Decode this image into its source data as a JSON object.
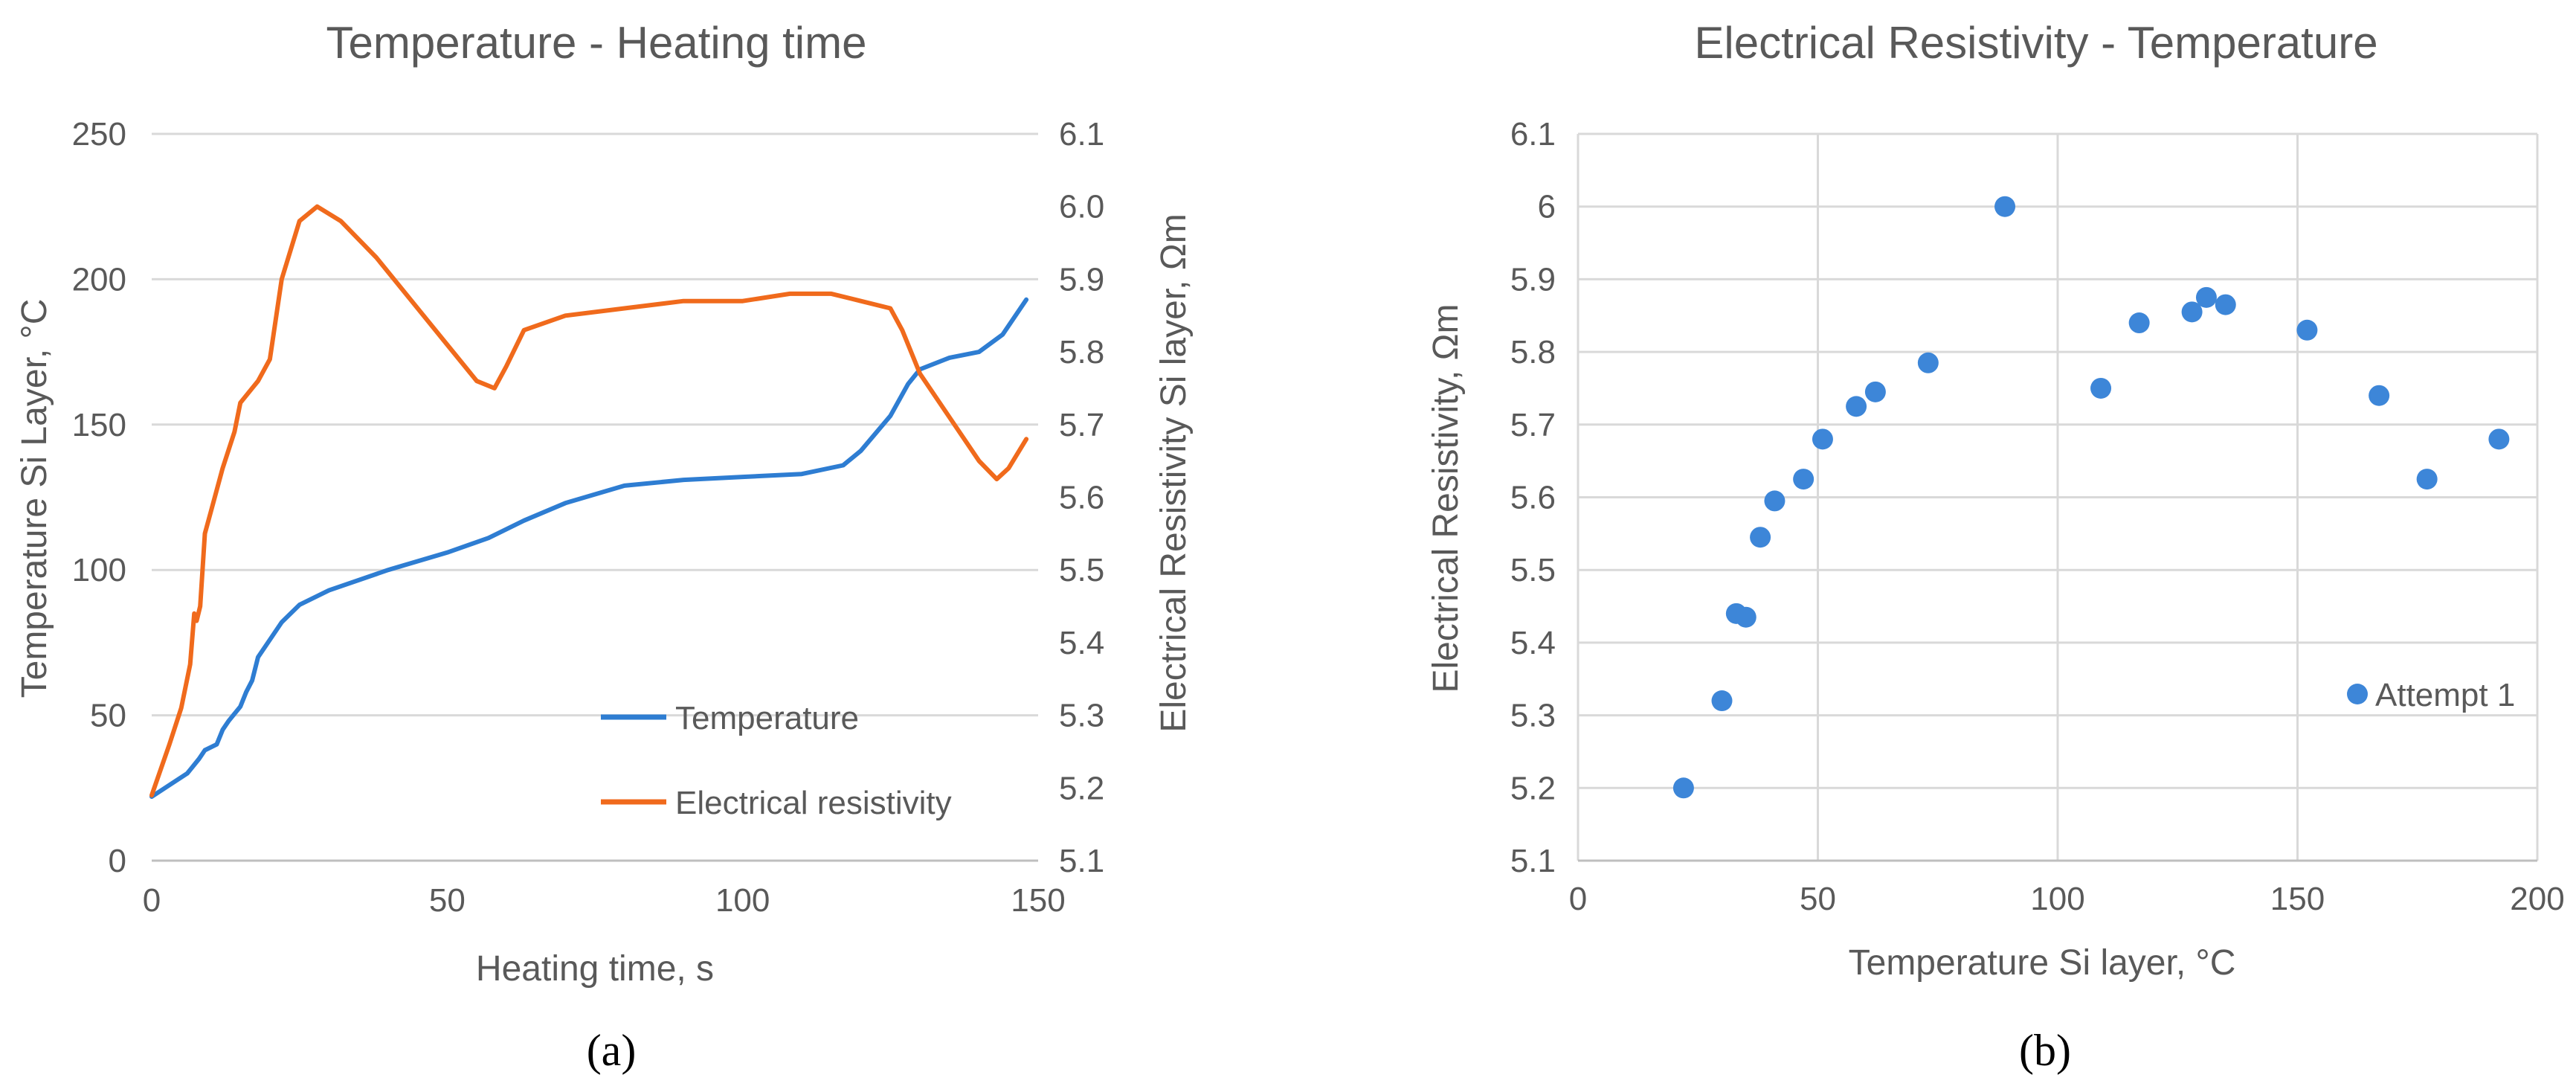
{
  "colors": {
    "temperature": "#2e7dd2",
    "resistivity": "#f06a1c",
    "points": "#3d86d8"
  },
  "panels": {
    "a": "(a)",
    "b": "(b)"
  },
  "chart_data": [
    {
      "type": "line",
      "title": "Temperature - Heating time",
      "xlabel": "Heating time, s",
      "ylabel": "Temperature Si Layer, °C",
      "y2label": "Electrical Resistivity Si layer, Ωm",
      "xlim": [
        0,
        150
      ],
      "ylim": [
        0,
        250
      ],
      "y2lim": [
        5.1,
        6.1
      ],
      "x_ticks": [
        "0",
        "50",
        "100",
        "150"
      ],
      "y_ticks": [
        "0",
        "50",
        "100",
        "150",
        "200",
        "250"
      ],
      "y2_ticks": [
        "5.1",
        "5.2",
        "5.3",
        "5.4",
        "5.5",
        "5.6",
        "5.7",
        "5.8",
        "5.9",
        "6.0",
        "6.1"
      ],
      "grid": "horizontal",
      "legend_position": "bottom-right",
      "series": [
        {
          "name": "Temperature",
          "axis": "left",
          "color": "#2e7dd2",
          "x": [
            0,
            3,
            6,
            8,
            9,
            10,
            11,
            12,
            13,
            15,
            16,
            17,
            18,
            20,
            22,
            25,
            30,
            40,
            50,
            57,
            63,
            70,
            80,
            90,
            100,
            110,
            117,
            120,
            125,
            128,
            130,
            135,
            140,
            144,
            148
          ],
          "y": [
            22,
            26,
            30,
            35,
            38,
            39,
            40,
            45,
            48,
            53,
            58,
            62,
            70,
            76,
            82,
            88,
            93,
            100,
            106,
            111,
            117,
            123,
            129,
            131,
            132,
            133,
            136,
            141,
            153,
            164,
            169,
            173,
            175,
            181,
            193
          ]
        },
        {
          "name": "Electrical resistivity",
          "axis": "right",
          "color": "#f06a1c",
          "x": [
            0,
            3,
            5,
            6.5,
            7.2,
            7.6,
            8.2,
            9,
            10,
            12,
            14,
            15,
            16,
            17,
            18,
            20,
            22,
            25,
            28,
            32,
            38,
            45,
            50,
            55,
            58,
            60,
            63,
            70,
            80,
            90,
            100,
            108,
            115,
            120,
            125,
            127,
            130,
            135,
            140,
            143,
            145,
            148
          ],
          "y": [
            5.19,
            5.26,
            5.31,
            5.37,
            5.44,
            5.43,
            5.45,
            5.55,
            5.58,
            5.64,
            5.69,
            5.73,
            5.74,
            5.75,
            5.76,
            5.79,
            5.9,
            5.98,
            6.0,
            5.98,
            5.93,
            5.86,
            5.81,
            5.76,
            5.75,
            5.78,
            5.83,
            5.85,
            5.86,
            5.87,
            5.87,
            5.88,
            5.88,
            5.87,
            5.86,
            5.83,
            5.77,
            5.71,
            5.65,
            5.625,
            5.64,
            5.68
          ]
        }
      ]
    },
    {
      "type": "scatter",
      "title": "Electrical Resistivity - Temperature",
      "xlabel": "Temperature Si layer, °C",
      "ylabel": "Electrical Resistivity, Ωm",
      "xlim": [
        0,
        200
      ],
      "ylim": [
        5.1,
        6.1
      ],
      "x_ticks": [
        "0",
        "50",
        "100",
        "150",
        "200"
      ],
      "y_ticks": [
        "5.1",
        "5.2",
        "5.3",
        "5.4",
        "5.5",
        "5.6",
        "5.7",
        "5.8",
        "5.9",
        "6",
        "6.1"
      ],
      "grid": "both",
      "legend_position": "right",
      "series": [
        {
          "name": "Attempt 1",
          "color": "#3d86d8",
          "x": [
            22,
            30,
            33,
            35,
            38,
            41,
            47,
            51,
            58,
            62,
            73,
            89,
            109,
            117,
            128,
            131,
            135,
            152,
            167,
            177,
            192
          ],
          "y": [
            5.2,
            5.32,
            5.44,
            5.435,
            5.545,
            5.595,
            5.625,
            5.68,
            5.725,
            5.745,
            5.785,
            6.0,
            5.75,
            5.84,
            5.855,
            5.875,
            5.865,
            5.83,
            5.74,
            5.625,
            5.68
          ]
        }
      ]
    }
  ]
}
